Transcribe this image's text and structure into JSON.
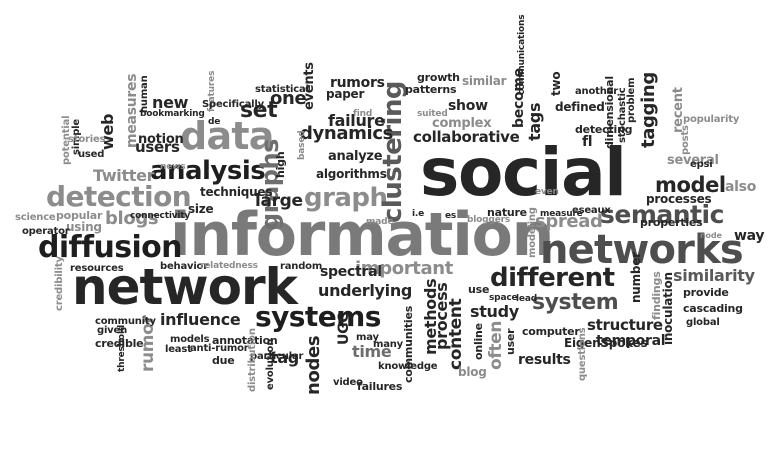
{
  "words": [
    "information",
    "social",
    "network",
    "networks",
    "data",
    "diffusion",
    "detection",
    "systems",
    "analysis",
    "graph",
    "semantic",
    "clustering",
    "spread",
    "model",
    "different",
    "system",
    "graphs",
    "important",
    "set",
    "dynamics",
    "blogs",
    "one",
    "new",
    "users",
    "influence",
    "underlying",
    "spectral",
    "time",
    "tagging",
    "tag",
    "nodes",
    "study",
    "failure",
    "rumors",
    "tags",
    "web",
    "large",
    "Twitter",
    "similarity",
    "structure",
    "temporal",
    "collaborative",
    "show",
    "defined",
    "content",
    "rumor",
    "methods",
    "process",
    "often",
    "also",
    "results",
    "UGC",
    "measures",
    "notion",
    "analyze",
    "algorithms",
    "paper",
    "events",
    "popular",
    "using",
    "several",
    "provide",
    "processes",
    "properties",
    "way",
    "cascading",
    "online",
    "computer",
    "knowledge",
    "complex",
    "similar",
    "growth",
    "patterns",
    "fl",
    "two",
    "become",
    "another",
    "recent",
    "dimensional",
    "stochastic",
    "problem",
    "popularity",
    "epsi",
    "global",
    "inoculation",
    "findings",
    "number",
    "posts",
    "EigenSpokes",
    "use",
    "communities",
    "many",
    "may",
    "video",
    "failures",
    "user",
    "blog",
    "lead",
    "space",
    "questions",
    "modeling",
    "nature",
    "bloggers",
    "es",
    "i.e",
    "made",
    "measure",
    "eseaux",
    "even",
    "detecting",
    "suited",
    "communications",
    "find",
    "based",
    "high",
    "techniques",
    "size",
    "connectivity",
    "behavior",
    "relatedness",
    "random",
    "resources",
    "operator",
    "science",
    "credibility",
    "potential",
    "simple",
    "used",
    "stories",
    "news",
    "features",
    "human",
    "bookmarking",
    "Specifically",
    "de",
    "statistical",
    "community",
    "given",
    "credible",
    "threshold",
    "models",
    "least",
    "anti-rumor",
    "due",
    "annotation",
    "particular",
    "distribution",
    "evolution",
    "node"
  ]
}
